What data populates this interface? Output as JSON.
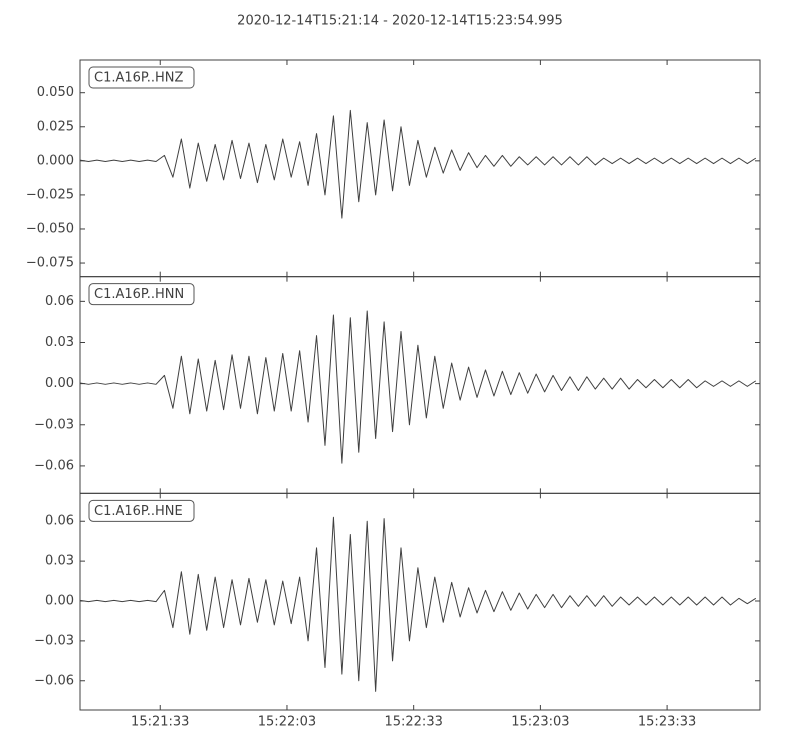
{
  "chart_data": {
    "type": "line",
    "title": "2020-12-14T15:21:14  -  2020-12-14T15:23:54.995",
    "color": "#404040",
    "xlim": [
      "15:21:14",
      "15:23:54.995"
    ],
    "xticks": [
      "15:21:33",
      "15:22:03",
      "15:22:33",
      "15:23:03",
      "15:23:33"
    ],
    "x": [
      "15:21:14",
      "15:21:16",
      "15:21:18",
      "15:21:20",
      "15:21:22",
      "15:21:24",
      "15:21:26",
      "15:21:28",
      "15:21:30",
      "15:21:32",
      "15:21:34",
      "15:21:36",
      "15:21:38",
      "15:21:40",
      "15:21:42",
      "15:21:44",
      "15:21:46",
      "15:21:48",
      "15:21:50",
      "15:21:52",
      "15:21:54",
      "15:21:56",
      "15:21:58",
      "15:22:00",
      "15:22:02",
      "15:22:04",
      "15:22:06",
      "15:22:08",
      "15:22:10",
      "15:22:12",
      "15:22:14",
      "15:22:16",
      "15:22:18",
      "15:22:20",
      "15:22:22",
      "15:22:24",
      "15:22:26",
      "15:22:28",
      "15:22:30",
      "15:22:32",
      "15:22:34",
      "15:22:36",
      "15:22:38",
      "15:22:40",
      "15:22:42",
      "15:22:44",
      "15:22:46",
      "15:22:48",
      "15:22:50",
      "15:22:52",
      "15:22:54",
      "15:22:56",
      "15:22:58",
      "15:23:00",
      "15:23:02",
      "15:23:04",
      "15:23:06",
      "15:23:08",
      "15:23:10",
      "15:23:12",
      "15:23:14",
      "15:23:16",
      "15:23:18",
      "15:23:20",
      "15:23:22",
      "15:23:24",
      "15:23:26",
      "15:23:28",
      "15:23:30",
      "15:23:32",
      "15:23:34",
      "15:23:36",
      "15:23:38",
      "15:23:40",
      "15:23:42",
      "15:23:44",
      "15:23:46",
      "15:23:48",
      "15:23:50",
      "15:23:52",
      "15:23:54"
    ],
    "panels": [
      {
        "label": "C1.A16P..HNZ",
        "ylim": [
          -0.085,
          0.074
        ],
        "yticks": [
          {
            "value": -0.075,
            "label": "−0.075"
          },
          {
            "value": -0.05,
            "label": "−0.050"
          },
          {
            "value": -0.025,
            "label": "−0.025"
          },
          {
            "value": 0,
            "label": "0.000"
          },
          0.025,
          {
            "value": 0.05,
            "label": "0.050"
          }
        ],
        "values": [
          0.0005,
          -0.0005,
          0.0005,
          -0.0005,
          0.0005,
          -0.0005,
          0.0005,
          -0.0005,
          0.0005,
          -0.0005,
          0.004,
          -0.012,
          0.016,
          -0.02,
          0.013,
          -0.015,
          0.012,
          -0.014,
          0.015,
          -0.013,
          0.013,
          -0.016,
          0.012,
          -0.014,
          0.016,
          -0.012,
          0.014,
          -0.018,
          0.02,
          -0.025,
          0.033,
          -0.042,
          0.037,
          -0.03,
          0.028,
          -0.025,
          0.03,
          -0.022,
          0.025,
          -0.018,
          0.015,
          -0.012,
          0.01,
          -0.009,
          0.008,
          -0.007,
          0.006,
          -0.005,
          0.004,
          -0.004,
          0.004,
          -0.004,
          0.003,
          -0.003,
          0.003,
          -0.003,
          0.003,
          -0.003,
          0.003,
          -0.003,
          0.003,
          -0.003,
          0.002,
          -0.002,
          0.002,
          -0.002,
          0.002,
          -0.002,
          0.002,
          -0.002,
          0.002,
          -0.002,
          0.002,
          -0.002,
          0.002,
          -0.002,
          0.002,
          -0.002,
          0.002,
          -0.002,
          0.002
        ]
      },
      {
        "label": "C1.A16P..HNN",
        "ylim": [
          -0.08,
          0.078
        ],
        "yticks": [
          {
            "value": -0.06,
            "label": "−0.06"
          },
          {
            "value": -0.03,
            "label": "−0.03"
          },
          {
            "value": 0,
            "label": "0.00"
          },
          0.03,
          0.06
        ],
        "values": [
          0.0005,
          -0.0005,
          0.0005,
          -0.0005,
          0.0005,
          -0.0005,
          0.0005,
          -0.0005,
          0.0005,
          -0.0005,
          0.006,
          -0.018,
          0.02,
          -0.022,
          0.018,
          -0.02,
          0.017,
          -0.019,
          0.021,
          -0.018,
          0.02,
          -0.022,
          0.019,
          -0.02,
          0.022,
          -0.02,
          0.024,
          -0.028,
          0.035,
          -0.045,
          0.05,
          -0.058,
          0.048,
          -0.05,
          0.053,
          -0.04,
          0.045,
          -0.035,
          0.038,
          -0.03,
          0.028,
          -0.025,
          0.02,
          -0.018,
          0.015,
          -0.012,
          0.012,
          -0.01,
          0.01,
          -0.009,
          0.009,
          -0.008,
          0.008,
          -0.007,
          0.007,
          -0.006,
          0.006,
          -0.005,
          0.005,
          -0.005,
          0.005,
          -0.004,
          0.004,
          -0.004,
          0.004,
          -0.004,
          0.003,
          -0.003,
          0.003,
          -0.003,
          0.003,
          -0.003,
          0.003,
          -0.003,
          0.002,
          -0.002,
          0.002,
          -0.002,
          0.002,
          -0.002,
          0.002
        ]
      },
      {
        "label": "C1.A16P..HNE",
        "ylim": [
          -0.082,
          0.081
        ],
        "yticks": [
          {
            "value": -0.06,
            "label": "−0.06"
          },
          {
            "value": -0.03,
            "label": "−0.03"
          },
          {
            "value": 0,
            "label": "0.00"
          },
          0.03,
          0.06
        ],
        "values": [
          0.0005,
          -0.0005,
          0.0005,
          -0.0005,
          0.0005,
          -0.0005,
          0.0005,
          -0.0005,
          0.0005,
          -0.0005,
          0.008,
          -0.02,
          0.022,
          -0.025,
          0.02,
          -0.022,
          0.018,
          -0.02,
          0.016,
          -0.018,
          0.017,
          -0.016,
          0.016,
          -0.018,
          0.015,
          -0.017,
          0.018,
          -0.03,
          0.04,
          -0.05,
          0.063,
          -0.055,
          0.05,
          -0.06,
          0.06,
          -0.068,
          0.062,
          -0.045,
          0.04,
          -0.03,
          0.025,
          -0.02,
          0.018,
          -0.016,
          0.014,
          -0.012,
          0.01,
          -0.009,
          0.008,
          -0.008,
          0.007,
          -0.007,
          0.006,
          -0.006,
          0.005,
          -0.005,
          0.005,
          -0.005,
          0.004,
          -0.004,
          0.004,
          -0.004,
          0.004,
          -0.004,
          0.003,
          -0.003,
          0.003,
          -0.003,
          0.003,
          -0.003,
          0.003,
          -0.003,
          0.003,
          -0.003,
          0.003,
          -0.003,
          0.003,
          -0.003,
          0.002,
          -0.002,
          0.002
        ]
      }
    ]
  }
}
